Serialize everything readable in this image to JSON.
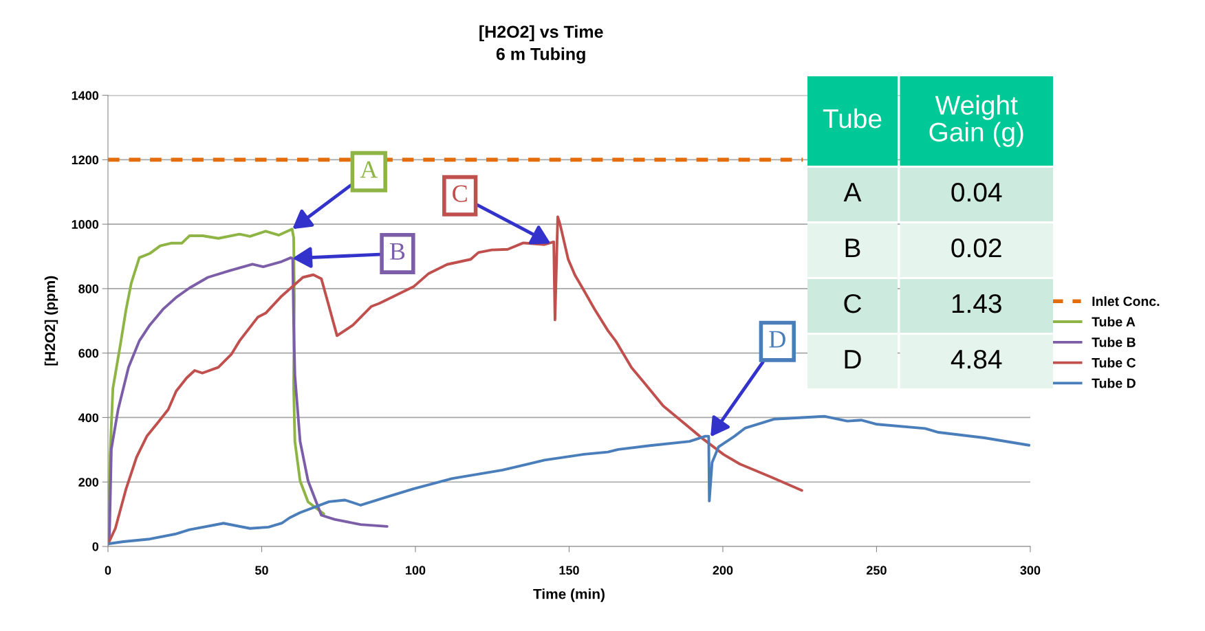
{
  "chart_data": {
    "type": "line",
    "title": "[H2O2] vs Time\n6 m Tubing",
    "xlabel": "Time (min)",
    "ylabel": "[H2O2] (ppm)",
    "xlim": [
      0,
      300
    ],
    "xticks": [
      0,
      50,
      100,
      150,
      200,
      250,
      300
    ],
    "ylim": [
      0,
      1400
    ],
    "yticks": [
      0,
      200,
      400,
      600,
      800,
      1000,
      1200,
      1400
    ],
    "grid": "y",
    "legend": "right",
    "marker": "none",
    "series": [
      {
        "name": "Inlet Conc.",
        "color": "#e46c0a",
        "line_style": "dashed",
        "x": [
          0,
          226
        ],
        "values": [
          1200,
          1200
        ]
      },
      {
        "name": "Tube A",
        "color": "#8db444",
        "x": [
          0,
          0.7,
          1.6,
          4.1,
          5.9,
          7.6,
          10.2,
          13.6,
          17,
          20.5,
          24,
          26.5,
          30.8,
          35.9,
          42.8,
          46.2,
          51.3,
          55.6,
          59.9,
          60.4,
          60.6,
          60.4,
          60.8,
          62.5,
          65.1,
          70.2
        ],
        "values": [
          15,
          285,
          490,
          630,
          736,
          818,
          896,
          909,
          933,
          941,
          941,
          964,
          964,
          956,
          969,
          962,
          978,
          966,
          985,
          958,
          777,
          490,
          326,
          203,
          138,
          101
        ]
      },
      {
        "name": "Tube B",
        "color": "#7b5ea7",
        "x": [
          0,
          0.5,
          1.1,
          3.3,
          6.7,
          10.2,
          13.6,
          17.9,
          22.2,
          26.5,
          32.5,
          39.3,
          47,
          50.5,
          56.5,
          59.5,
          60.1,
          60.4,
          60.8,
          62.5,
          65.1,
          69.4,
          73.7,
          82.2,
          90.8
        ],
        "values": [
          7,
          39,
          302,
          425,
          556,
          638,
          687,
          736,
          773,
          802,
          835,
          855,
          876,
          868,
          884,
          896,
          892,
          695,
          531,
          326,
          203,
          97,
          84,
          68,
          62
        ]
      },
      {
        "name": "Tube C",
        "color": "#c0504d",
        "x": [
          0,
          2.4,
          5.9,
          9.3,
          12.7,
          16.2,
          19.6,
          22.2,
          25.6,
          28.2,
          30.7,
          35.9,
          40.2,
          42.8,
          48.8,
          51.3,
          56.5,
          63.4,
          66.8,
          69.4,
          71.9,
          74.5,
          79.7,
          85.7,
          88.2,
          99.4,
          104.2,
          110.3,
          118,
          120.5,
          124.8,
          130,
          135.1,
          142,
          145,
          145.4,
          146.3,
          147.1,
          149.7,
          151.9,
          154.9,
          158.3,
          162.6,
          165.2,
          170.3,
          174.6,
          180.6,
          185.8,
          193.5,
          200.3,
          205.5,
          215.8,
          225.7
        ],
        "values": [
          7,
          56,
          179,
          277,
          343,
          384,
          425,
          482,
          523,
          546,
          538,
          556,
          597,
          638,
          712,
          724,
          777,
          835,
          843,
          831,
          745,
          654,
          687,
          745,
          754,
          806,
          846,
          875,
          891,
          912,
          920,
          922,
          942,
          937,
          945,
          703,
          1023,
          998,
          891,
          842,
          793,
          736,
          670,
          637,
          555,
          506,
          436,
          395,
          334,
          285,
          256,
          215,
          174
        ]
      },
      {
        "name": "Tube D",
        "color": "#4a7ebb",
        "x": [
          0,
          5,
          13.6,
          22.2,
          26.5,
          37.6,
          46.2,
          52.2,
          56.5,
          59.1,
          62.5,
          71.9,
          77.1,
          82.2,
          90.8,
          99.4,
          112,
          128.3,
          142,
          154.9,
          162.6,
          166,
          176.3,
          189.2,
          194.3,
          195.4,
          195.6,
          196.5,
          198.6,
          203.8,
          207.2,
          216.6,
          227.8,
          233,
          240.5,
          245,
          250.2,
          265.8,
          270.2,
          285.1,
          299.6
        ],
        "values": [
          8,
          15,
          23,
          39,
          52,
          72,
          56,
          60,
          72,
          89,
          105,
          139,
          144,
          128,
          154,
          179,
          211,
          237,
          268,
          286,
          293,
          301,
          313,
          326,
          342,
          342,
          141,
          260,
          309,
          342,
          367,
          395,
          401,
          404,
          389,
          392,
          379,
          366,
          354,
          337,
          314
        ]
      }
    ],
    "annotations": [
      {
        "text": "A",
        "x": 60,
        "y": 985
      },
      {
        "text": "B",
        "x": 60,
        "y": 894
      },
      {
        "text": "C",
        "x": 144,
        "y": 940
      },
      {
        "text": "D",
        "x": 196,
        "y": 340
      },
      "Tube",
      "Weight\nGain (g)",
      "A",
      "0.04",
      "B",
      "0.02",
      "C",
      "1.43",
      "D",
      "4.84"
    ]
  }
}
